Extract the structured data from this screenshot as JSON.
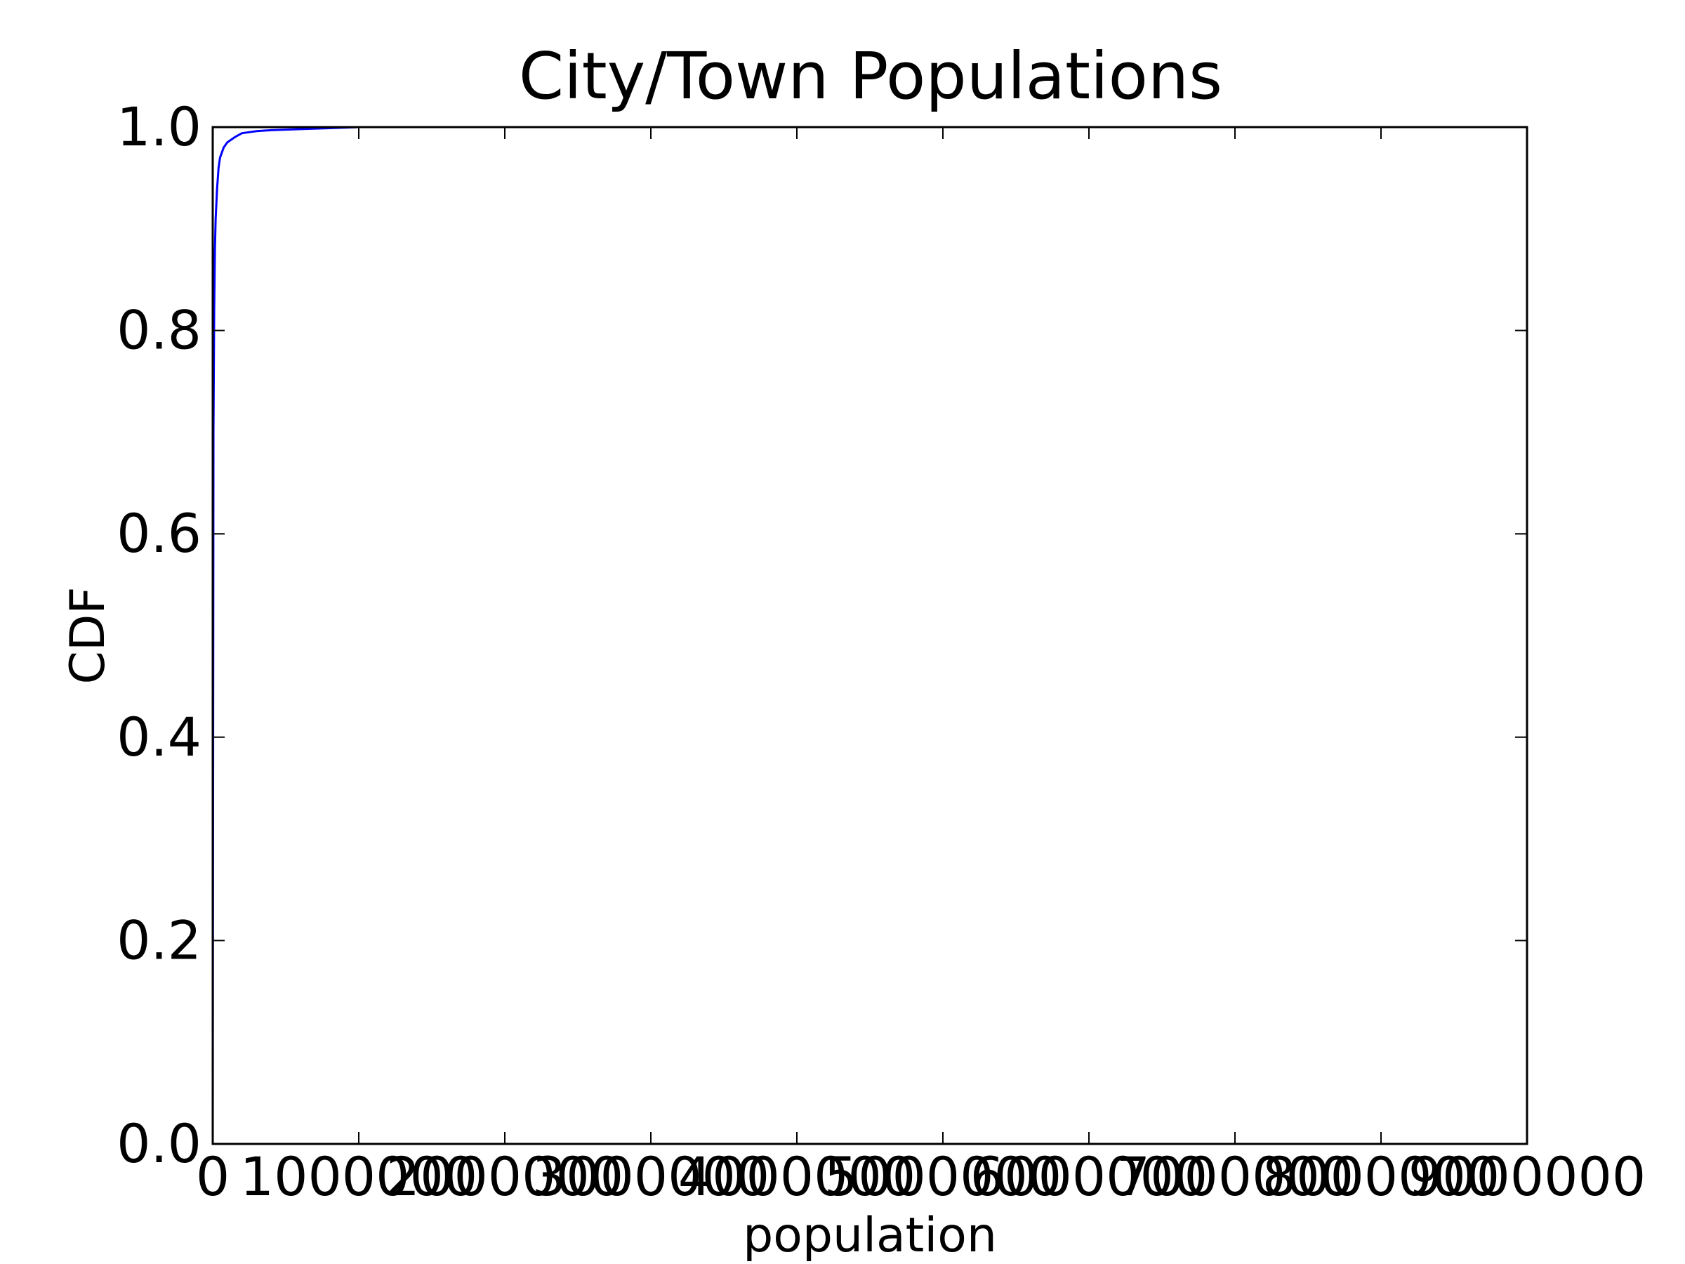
{
  "chart_data": {
    "type": "line",
    "title": "City/Town Populations",
    "xlabel": "population",
    "ylabel": "CDF",
    "xlim": [
      0,
      9000000
    ],
    "ylim": [
      0,
      1
    ],
    "grid": false,
    "legend": "none",
    "x_ticks": [
      0,
      1000000,
      2000000,
      3000000,
      4000000,
      5000000,
      6000000,
      7000000,
      8000000,
      9000000
    ],
    "x_tick_labels": [
      "0",
      "1000000",
      "2000000",
      "3000000",
      "4000000",
      "5000000",
      "6000000",
      "7000000",
      "8000000",
      "9000000"
    ],
    "y_ticks": [
      0,
      0.2,
      0.4,
      0.6,
      0.8,
      1.0
    ],
    "y_tick_labels": [
      "0.0",
      "0.2",
      "0.4",
      "0.6",
      "0.8",
      "1.0"
    ],
    "series": [
      {
        "color": "#0000ff",
        "x": [
          0,
          5000,
          10000,
          15000,
          20000,
          30000,
          40000,
          50000,
          75000,
          100000,
          150000,
          200000,
          300000,
          400000,
          600000,
          800000,
          1000000,
          9000000
        ],
        "y": [
          0.0,
          0.7,
          0.82,
          0.88,
          0.91,
          0.94,
          0.96,
          0.97,
          0.98,
          0.985,
          0.99,
          0.994,
          0.996,
          0.997,
          0.998,
          0.999,
          1.0,
          1.0
        ]
      }
    ]
  }
}
